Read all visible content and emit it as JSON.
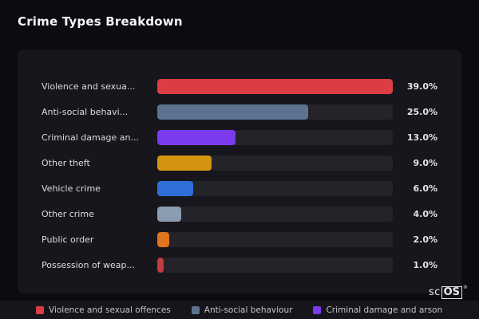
{
  "page": {
    "title": "Crime Types Breakdown"
  },
  "chart_data": {
    "type": "bar",
    "orientation": "horizontal",
    "title": "Crime Types Breakdown",
    "xlabel": "",
    "ylabel": "",
    "xlim": [
      0,
      39
    ],
    "grid": false,
    "categories": [
      "Violence and sexua...",
      "Anti-social behavi...",
      "Criminal damage an...",
      "Other theft",
      "Vehicle crime",
      "Other crime",
      "Public order",
      "Possession of weap..."
    ],
    "values": [
      39,
      25,
      13,
      9,
      6,
      4,
      2,
      1
    ],
    "value_labels": [
      "39.0%",
      "25.0%",
      "13.0%",
      "9.0%",
      "6.0%",
      "4.0%",
      "2.0%",
      "1.0%"
    ],
    "colors": [
      "#dc3d43",
      "#5d7290",
      "#7c3aed",
      "#d4940f",
      "#2e6fd8",
      "#8b9bb0",
      "#e0731d",
      "#c23b3f"
    ],
    "track_color": "#232329",
    "legend_position": "bottom"
  },
  "legend": {
    "items": [
      {
        "label": "Violence and sexual offences",
        "color": "#dc3d43"
      },
      {
        "label": "Anti-social behaviour",
        "color": "#5d7290"
      },
      {
        "label": "Criminal damage and arson",
        "color": "#7c3aed"
      }
    ]
  },
  "brand": {
    "prefix": "sc",
    "boxed": "OS",
    "reg": "®"
  }
}
